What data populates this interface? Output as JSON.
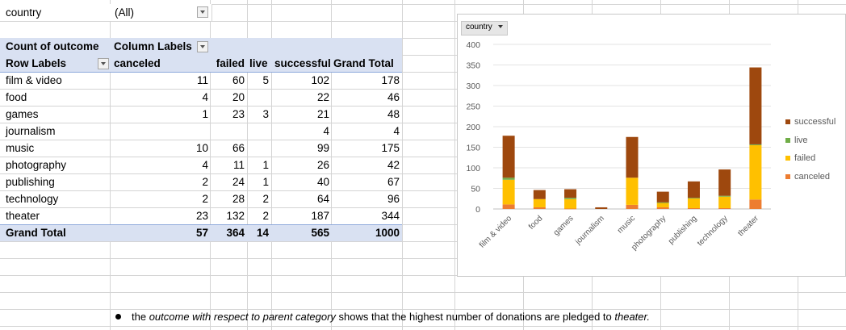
{
  "filter": {
    "label": "country",
    "value": "(All)"
  },
  "pivot": {
    "header_measure": "Count of outcome",
    "header_columns_label": "Column Labels",
    "row_labels_header": "Row Labels",
    "columns": [
      "canceled",
      "failed",
      "live",
      "successful",
      "Grand Total"
    ],
    "rows": [
      {
        "label": "film & video",
        "canceled": "11",
        "failed": "60",
        "live": "5",
        "successful": "102",
        "total": "178"
      },
      {
        "label": "food",
        "canceled": "4",
        "failed": "20",
        "live": "",
        "successful": "22",
        "total": "46"
      },
      {
        "label": "games",
        "canceled": "1",
        "failed": "23",
        "live": "3",
        "successful": "21",
        "total": "48"
      },
      {
        "label": "journalism",
        "canceled": "",
        "failed": "",
        "live": "",
        "successful": "4",
        "total": "4"
      },
      {
        "label": "music",
        "canceled": "10",
        "failed": "66",
        "live": "",
        "successful": "99",
        "total": "175"
      },
      {
        "label": "photography",
        "canceled": "4",
        "failed": "11",
        "live": "1",
        "successful": "26",
        "total": "42"
      },
      {
        "label": "publishing",
        "canceled": "2",
        "failed": "24",
        "live": "1",
        "successful": "40",
        "total": "67"
      },
      {
        "label": "technology",
        "canceled": "2",
        "failed": "28",
        "live": "2",
        "successful": "64",
        "total": "96"
      },
      {
        "label": "theater",
        "canceled": "23",
        "failed": "132",
        "live": "2",
        "successful": "187",
        "total": "344"
      }
    ],
    "grand_total": {
      "label": "Grand Total",
      "canceled": "57",
      "failed": "364",
      "live": "14",
      "successful": "565",
      "total": "1000"
    }
  },
  "chart_data": {
    "type": "bar",
    "stacked": true,
    "filter_button_label": "country",
    "categories": [
      "film & video",
      "food",
      "games",
      "journalism",
      "music",
      "photography",
      "publishing",
      "technology",
      "theater"
    ],
    "series": [
      {
        "name": "canceled",
        "color": "#ed7d31",
        "values": [
          11,
          4,
          1,
          0,
          10,
          4,
          2,
          2,
          23
        ]
      },
      {
        "name": "failed",
        "color": "#ffc000",
        "values": [
          60,
          20,
          23,
          0,
          66,
          11,
          24,
          28,
          132
        ]
      },
      {
        "name": "live",
        "color": "#70ad47",
        "values": [
          5,
          0,
          3,
          0,
          0,
          1,
          1,
          2,
          2
        ]
      },
      {
        "name": "successful",
        "color": "#9e480e",
        "values": [
          102,
          22,
          21,
          4,
          99,
          26,
          40,
          64,
          187
        ]
      }
    ],
    "yticks": [
      "0",
      "50",
      "100",
      "150",
      "200",
      "250",
      "300",
      "350",
      "400"
    ],
    "ylim": [
      0,
      400
    ],
    "legend_position": "right",
    "grid": true
  },
  "note": {
    "part1": "the ",
    "italic1": "outcome with respect to parent category",
    "part2": " shows that the highest number of donations are pledged to ",
    "italic2": "theater.",
    "part3": ""
  }
}
